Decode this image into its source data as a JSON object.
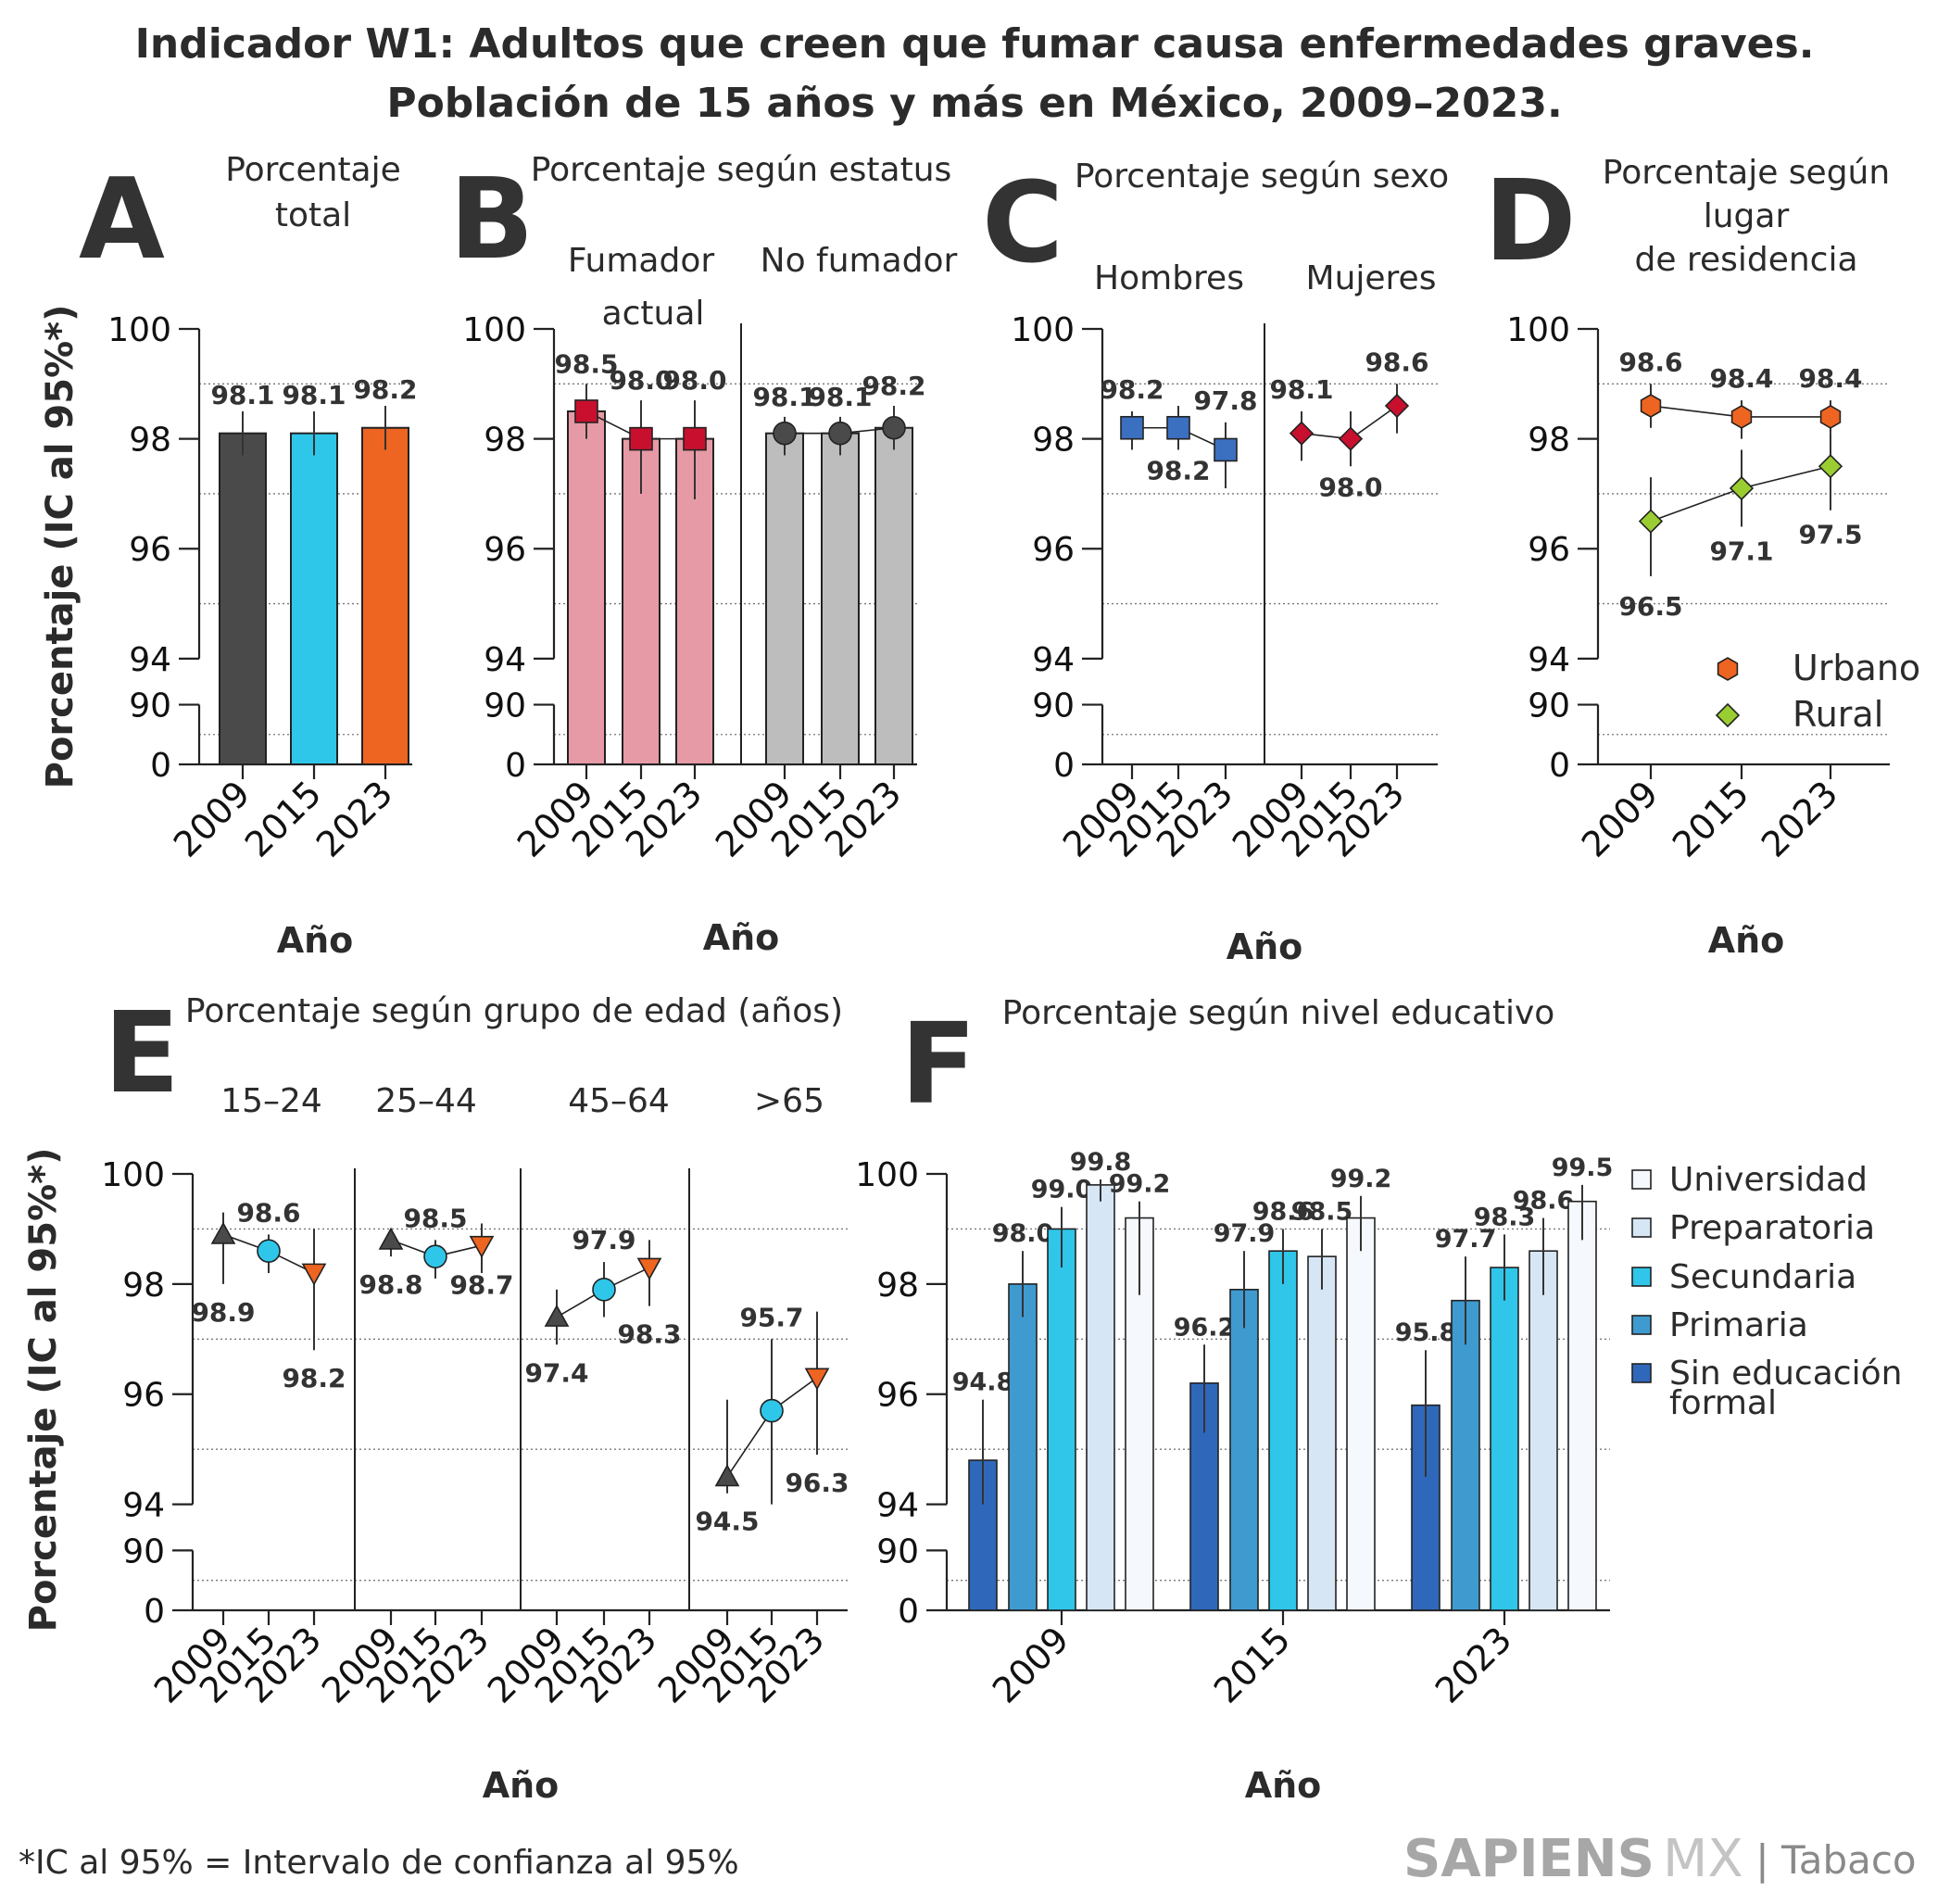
{
  "title_line1": "Indicador W1: Adultos que creen que fumar causa enfermedades graves.",
  "title_line2": "Población de 15 años y más en México, 2009–2023.",
  "y_axis_label": "Porcentaje (IC al 95%*)",
  "x_axis_label": "Año",
  "footnote": "*IC al 95% = Intervalo de confianza al 95%",
  "brand": {
    "name": "SAPIENS",
    "mx": "MX",
    "sep": "|",
    "topic": "Tabaco"
  },
  "colors": {
    "dark_gray": "#4a4a4a",
    "cyan": "#2ec7ea",
    "orange": "#ee6421",
    "pink": "#e69aa5",
    "pink_marker": "#c8102e",
    "gray": "#bdbdbd",
    "blue": "#3b6fc0",
    "crimson": "#c8102e",
    "urbano": "#ee6421",
    "rural": "#9acd32",
    "sin_educacion": "#2f68bb",
    "primaria": "#3f9ad0",
    "secundaria": "#2fc6ea",
    "preparatoria": "#d7e6f5",
    "universidad": "#f5f8fc"
  },
  "y_ticks": [
    "0",
    "90",
    "94",
    "96",
    "98",
    "100"
  ],
  "chart_data": [
    {
      "id": "A",
      "type": "bar",
      "subtitle": "Porcentaje total",
      "categories": [
        "2009",
        "2015",
        "2023"
      ],
      "values": [
        98.1,
        98.1,
        98.2
      ],
      "ci_low": [
        97.7,
        97.7,
        97.8
      ],
      "ci_high": [
        98.5,
        98.5,
        98.6
      ],
      "labels": [
        "98.1",
        "98.1",
        "98.2"
      ],
      "ylim": [
        0,
        100
      ],
      "axis_break": [
        90,
        94
      ]
    },
    {
      "id": "B",
      "type": "bar",
      "subtitle": "Porcentaje según estatus",
      "groups": [
        {
          "name": "Fumador actual",
          "categories": [
            "2009",
            "2015",
            "2023"
          ],
          "values": [
            98.5,
            98.0,
            98.0
          ],
          "ci_low": [
            98.0,
            97.0,
            96.9
          ],
          "ci_high": [
            99.0,
            98.7,
            98.7
          ],
          "labels": [
            "98.5",
            "98.0",
            "98.0"
          ]
        },
        {
          "name": "No fumador",
          "categories": [
            "2009",
            "2015",
            "2023"
          ],
          "values": [
            98.1,
            98.1,
            98.2
          ],
          "ci_low": [
            97.7,
            97.7,
            97.8
          ],
          "ci_high": [
            98.4,
            98.4,
            98.6
          ],
          "labels": [
            "98.1",
            "98.1",
            "98.2"
          ]
        }
      ],
      "ylim": [
        0,
        100
      ]
    },
    {
      "id": "C",
      "type": "line",
      "subtitle": "Porcentaje según sexo",
      "groups": [
        {
          "name": "Hombres",
          "categories": [
            "2009",
            "2015",
            "2023"
          ],
          "values": [
            98.2,
            98.2,
            97.8
          ],
          "ci_low": [
            97.8,
            97.8,
            97.1
          ],
          "ci_high": [
            98.5,
            98.6,
            98.3
          ],
          "labels": [
            "98.2",
            "98.2",
            "97.8"
          ]
        },
        {
          "name": "Mujeres",
          "categories": [
            "2009",
            "2015",
            "2023"
          ],
          "values": [
            98.1,
            98.0,
            98.6
          ],
          "ci_low": [
            97.6,
            97.5,
            98.1
          ],
          "ci_high": [
            98.5,
            98.5,
            99.0
          ],
          "labels": [
            "98.1",
            "98.0",
            "98.6"
          ]
        }
      ],
      "ylim": [
        0,
        100
      ]
    },
    {
      "id": "D",
      "type": "line",
      "subtitle": "Porcentaje según lugar de residencia",
      "categories": [
        "2009",
        "2015",
        "2023"
      ],
      "series": [
        {
          "name": "Urbano",
          "values": [
            98.6,
            98.4,
            98.4
          ],
          "ci_low": [
            98.2,
            98.0,
            98.1
          ],
          "ci_high": [
            99.0,
            98.7,
            98.7
          ],
          "labels": [
            "98.6",
            "98.4",
            "98.4"
          ]
        },
        {
          "name": "Rural",
          "values": [
            96.5,
            97.1,
            97.5
          ],
          "ci_low": [
            95.5,
            96.4,
            96.7
          ],
          "ci_high": [
            97.3,
            97.8,
            98.1
          ],
          "labels": [
            "96.5",
            "97.1",
            "97.5"
          ]
        }
      ],
      "ylim": [
        0,
        100
      ]
    },
    {
      "id": "E",
      "type": "line",
      "subtitle": "Porcentaje según grupo de edad (años)",
      "groups": [
        {
          "name": "15–24",
          "categories": [
            "2009",
            "2015",
            "2023"
          ],
          "values": [
            98.9,
            98.6,
            98.2
          ],
          "ci_low": [
            98.0,
            98.2,
            96.8
          ],
          "ci_high": [
            99.3,
            98.9,
            99.0
          ],
          "labels": [
            "98.9",
            "98.6",
            "98.2"
          ]
        },
        {
          "name": "25–44",
          "categories": [
            "2009",
            "2015",
            "2023"
          ],
          "values": [
            98.8,
            98.5,
            98.7
          ],
          "ci_low": [
            98.5,
            98.1,
            98.2
          ],
          "ci_high": [
            99.0,
            98.8,
            99.1
          ],
          "labels": [
            "98.8",
            "98.5",
            "98.7"
          ]
        },
        {
          "name": "45–64",
          "categories": [
            "2009",
            "2015",
            "2023"
          ],
          "values": [
            97.4,
            97.9,
            98.3
          ],
          "ci_low": [
            96.9,
            97.4,
            97.6
          ],
          "ci_high": [
            97.9,
            98.4,
            98.8
          ],
          "labels": [
            "97.4",
            "97.9",
            "98.3"
          ]
        },
        {
          "name": ">65",
          "categories": [
            "2009",
            "2015",
            "2023"
          ],
          "values": [
            94.5,
            95.7,
            96.3
          ],
          "ci_low": [
            94.2,
            94.0,
            94.9
          ],
          "ci_high": [
            95.9,
            97.0,
            97.5
          ],
          "labels": [
            "94.5",
            "95.7",
            "96.3"
          ]
        }
      ],
      "ylim": [
        0,
        100
      ]
    },
    {
      "id": "F",
      "type": "bar",
      "subtitle": "Porcentaje según nivel educativo",
      "categories": [
        "2009",
        "2015",
        "2023"
      ],
      "series": [
        {
          "name": "Sin educación formal",
          "values": [
            94.8,
            96.2,
            95.8
          ],
          "ci_low": [
            94.0,
            95.3,
            94.5
          ],
          "ci_high": [
            95.9,
            96.9,
            96.8
          ],
          "labels": [
            "94.8",
            "96.2",
            "95.8"
          ]
        },
        {
          "name": "Primaria",
          "values": [
            98.0,
            97.9,
            97.7
          ],
          "ci_low": [
            97.4,
            97.2,
            96.9
          ],
          "ci_high": [
            98.6,
            98.6,
            98.5
          ],
          "labels": [
            "98.0",
            "97.9",
            "97.7"
          ]
        },
        {
          "name": "Secundaria",
          "values": [
            99.0,
            98.6,
            98.3
          ],
          "ci_low": [
            98.3,
            98.0,
            97.7
          ],
          "ci_high": [
            99.4,
            99.0,
            98.9
          ],
          "labels": [
            "99.0",
            "98.6",
            "98.3"
          ]
        },
        {
          "name": "Preparatoria",
          "values": [
            99.8,
            98.5,
            98.6
          ],
          "ci_low": [
            99.5,
            97.9,
            97.8
          ],
          "ci_high": [
            99.9,
            99.0,
            99.2
          ],
          "labels": [
            "99.8",
            "98.5",
            "98.6"
          ]
        },
        {
          "name": "Universidad",
          "values": [
            99.2,
            99.2,
            99.5
          ],
          "ci_low": [
            97.8,
            98.6,
            98.8
          ],
          "ci_high": [
            99.5,
            99.6,
            99.8
          ],
          "labels": [
            "99.2",
            "99.2",
            "99.5"
          ]
        }
      ],
      "legend_order": [
        "Universidad",
        "Preparatoria",
        "Secundaria",
        "Primaria",
        "Sin educación formal"
      ],
      "legend_last_lines": [
        "Sin educación",
        "formal"
      ],
      "ylim": [
        0,
        100
      ]
    }
  ]
}
